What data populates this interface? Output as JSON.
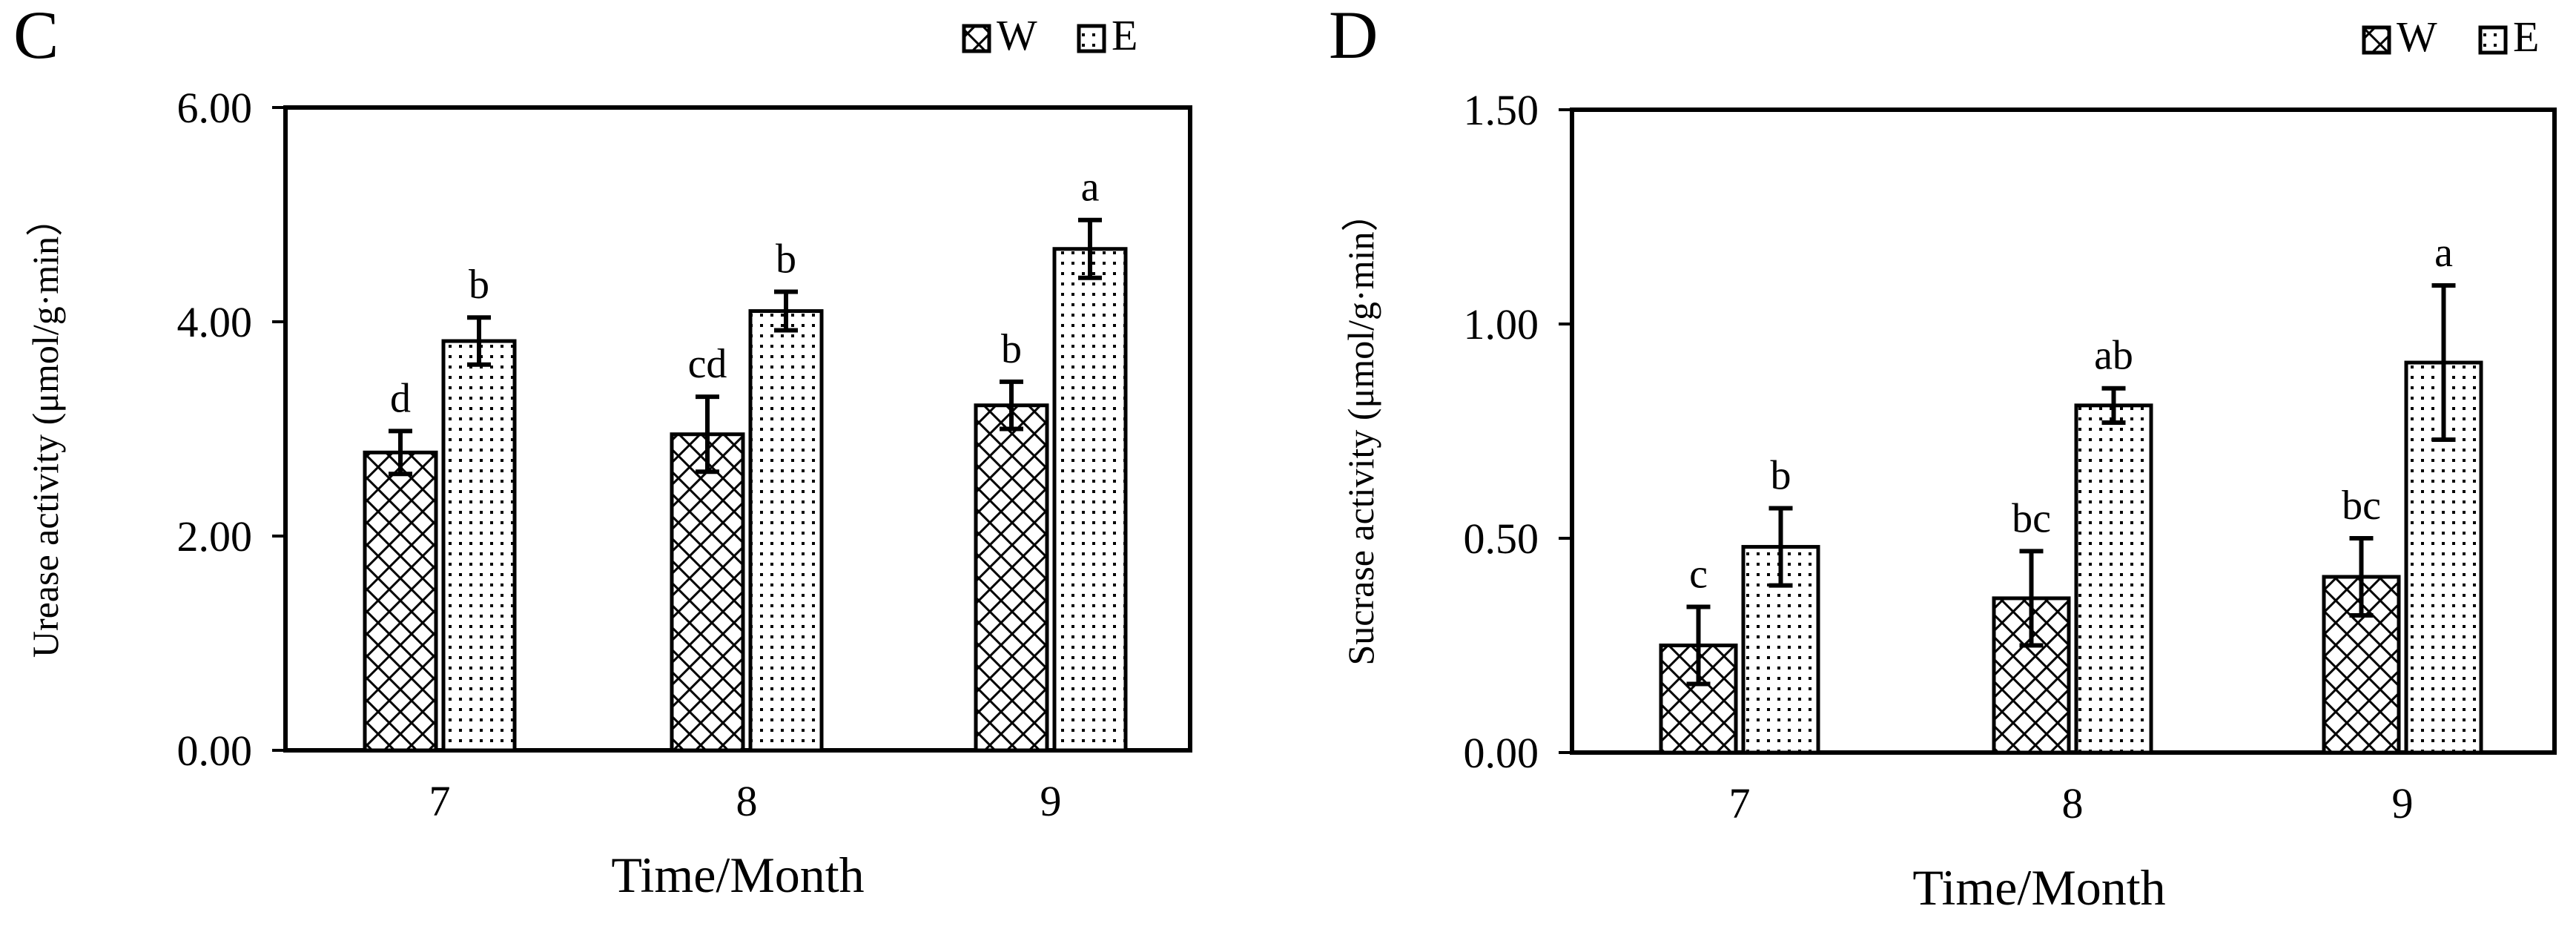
{
  "chart_data": [
    {
      "panel": "C",
      "type": "bar",
      "title": "",
      "xlabel": "Time/Month",
      "ylabel": "Urease activity (μmol/g·min）",
      "ylim": [
        0,
        6
      ],
      "yticks": [
        "0.00",
        "2.00",
        "4.00",
        "6.00"
      ],
      "categories": [
        "7",
        "8",
        "9"
      ],
      "legend": {
        "position": "top-right",
        "entries": [
          "W",
          "E"
        ]
      },
      "series": [
        {
          "name": "W",
          "pattern": "crosshatch",
          "values": [
            2.78,
            2.95,
            3.22
          ],
          "errors": [
            0.2,
            0.35,
            0.22
          ],
          "labels": [
            "d",
            "cd",
            "b"
          ]
        },
        {
          "name": "E",
          "pattern": "dots",
          "values": [
            3.82,
            4.1,
            4.68
          ],
          "errors": [
            0.22,
            0.18,
            0.27
          ],
          "labels": [
            "b",
            "b",
            "a"
          ]
        }
      ]
    },
    {
      "panel": "D",
      "type": "bar",
      "title": "",
      "xlabel": "Time/Month",
      "ylabel": "Sucrase activity (μmol/g·min）",
      "ylim": [
        0,
        1.5
      ],
      "yticks": [
        "0.00",
        "0.50",
        "1.00",
        "1.50"
      ],
      "categories": [
        "7",
        "8",
        "9"
      ],
      "legend": {
        "position": "top-right",
        "entries": [
          "W",
          "E"
        ]
      },
      "series": [
        {
          "name": "W",
          "pattern": "crosshatch",
          "values": [
            0.25,
            0.36,
            0.41
          ],
          "errors": [
            0.09,
            0.11,
            0.09
          ],
          "labels": [
            "c",
            "bc",
            "bc"
          ]
        },
        {
          "name": "E",
          "pattern": "dots",
          "values": [
            0.48,
            0.81,
            0.91
          ],
          "errors": [
            0.09,
            0.04,
            0.18
          ],
          "labels": [
            "b",
            "ab",
            "a"
          ]
        }
      ]
    }
  ]
}
